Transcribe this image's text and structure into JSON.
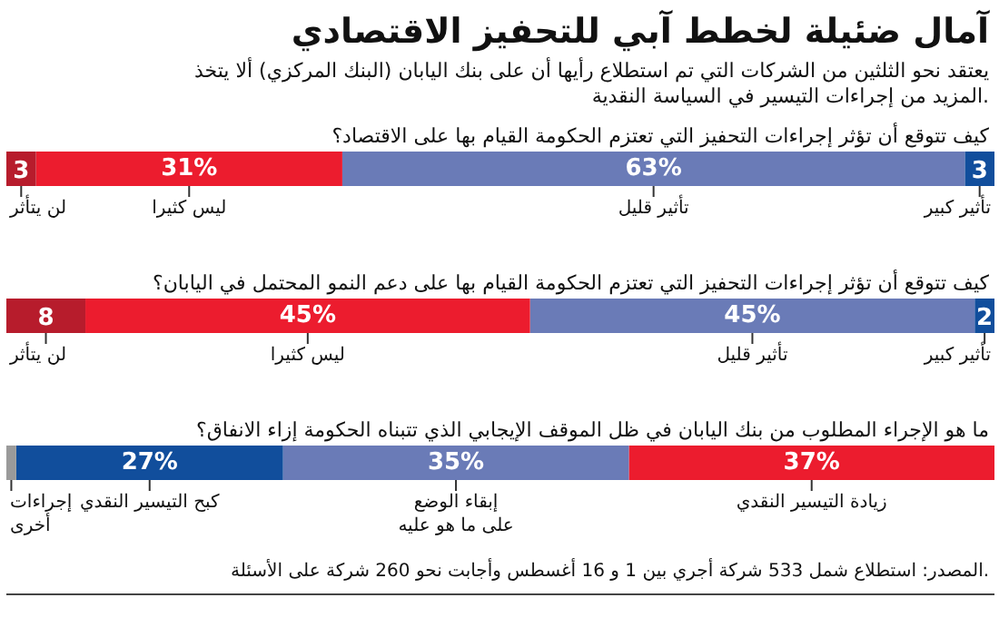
{
  "chart_data": [
    {
      "type": "bar",
      "orientation": "horizontal",
      "stacked": true,
      "title": "آمال ضئيلة لخطط آبي للتحفيز الاقتصادي",
      "subtitle": "يعتقد نحو الثلثين من الشركات التي تم استطلاع رأيها أن على بنك اليابان (البنك المركزي) ألا يتخذ المزيد من إجراءات التيسير في السياسة النقدية.",
      "annotations": [
        "كيف تتوقع أن تؤثر إجراءات التحفيز التي تعتزم الحكومة القيام بها على الاقتصاد؟"
      ],
      "categories": [
        null
      ],
      "xlim": [
        100,
        0
      ],
      "tick_labels": false,
      "legend": "bottom",
      "series": [
        {
          "name": "تأثير كبير",
          "color": "#114e9c",
          "values": [
            3
          ],
          "value_labels": [
            "3"
          ]
        },
        {
          "name": "تأثير قليل",
          "color": "#6a7bb7",
          "values": [
            63
          ],
          "value_labels": [
            "63%"
          ]
        },
        {
          "name": "ليس كثيرا",
          "color": "#ec1c2e",
          "values": [
            31
          ],
          "value_labels": [
            "31%"
          ]
        },
        {
          "name": "لن يتأثر",
          "color": "#b71c2c",
          "values": [
            3
          ],
          "value_labels": [
            "3"
          ]
        }
      ]
    },
    {
      "type": "bar",
      "orientation": "horizontal",
      "stacked": true,
      "annotations": [
        "كيف تتوقع أن تؤثر إجراءات التحفيز التي تعتزم الحكومة القيام بها على دعم النمو المحتمل في اليابان؟"
      ],
      "categories": [
        null
      ],
      "xlim": [
        100,
        0
      ],
      "tick_labels": false,
      "legend": "bottom",
      "series": [
        {
          "name": "تأثير كبير",
          "color": "#114e9c",
          "values": [
            2
          ],
          "value_labels": [
            "2"
          ]
        },
        {
          "name": "تأثير قليل",
          "color": "#6a7bb7",
          "values": [
            45
          ],
          "value_labels": [
            "45%"
          ]
        },
        {
          "name": "ليس كثيرا",
          "color": "#ec1c2e",
          "values": [
            45
          ],
          "value_labels": [
            "45%"
          ]
        },
        {
          "name": "لن يتأثر",
          "color": "#b71c2c",
          "values": [
            8
          ],
          "value_labels": [
            "8"
          ]
        }
      ]
    },
    {
      "type": "bar",
      "orientation": "horizontal",
      "stacked": true,
      "annotations": [
        "ما هو الإجراء المطلوب من بنك اليابان في ظل الموقف الإيجابي الذي تتبناه الحكومة إزاء الانفاق؟",
        "المصدر: استطلاع شمل 533 شركة أجري بين 1 و 16 أغسطس وأجابت نحو 260 شركة على الأسئلة."
      ],
      "categories": [
        null
      ],
      "xlim": [
        100,
        0
      ],
      "tick_labels": false,
      "legend": "bottom",
      "series": [
        {
          "name": "زيادة التيسير النقدي",
          "color": "#ec1c2e",
          "values": [
            37
          ],
          "value_labels": [
            "37%"
          ]
        },
        {
          "name": "إبقاء الوضع\nعلى ما هو عليه",
          "color": "#6a7bb7",
          "values": [
            35
          ],
          "value_labels": [
            "35%"
          ]
        },
        {
          "name": "كبح التيسير النقدي",
          "color": "#114e9c",
          "values": [
            27
          ],
          "value_labels": [
            "27%"
          ]
        },
        {
          "name": "إجراءات\nأخرى",
          "color": "#9a9a9a",
          "values": [
            1
          ],
          "value_labels": [
            null
          ]
        }
      ]
    }
  ]
}
